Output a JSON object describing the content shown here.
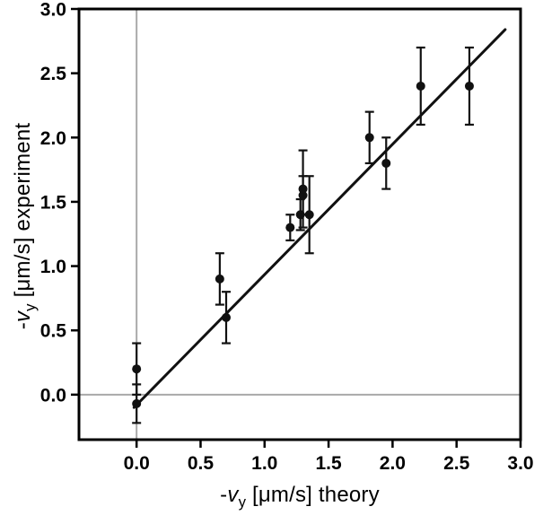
{
  "chart_data": {
    "type": "scatter",
    "title": "",
    "xlabel": "-vy [μm/s] theory",
    "ylabel": "-vy [μm/s] experiment",
    "xlabel_parts": {
      "prefix": "-",
      "var": "v",
      "sub": "y",
      "rest": " [μm/s] theory"
    },
    "ylabel_parts": {
      "prefix": "-",
      "var": "v",
      "sub": "y",
      "rest": " [μm/s] experiment"
    },
    "xlim": [
      -0.45,
      3.0
    ],
    "ylim": [
      -0.35,
      3.0
    ],
    "xticks": [
      0.0,
      0.5,
      1.0,
      1.5,
      2.0,
      2.5,
      3.0
    ],
    "xtick_labels": [
      "0.0",
      "0.5",
      "1.0",
      "1.5",
      "2.0",
      "2.5",
      "3.0"
    ],
    "yticks": [
      0.0,
      0.5,
      1.0,
      1.5,
      2.0,
      2.5,
      3.0
    ],
    "ytick_labels": [
      "0.0",
      "0.5",
      "1.0",
      "1.5",
      "2.0",
      "2.5",
      "3.0"
    ],
    "grid": false,
    "legend": null,
    "zero_lines": {
      "x": 0.0,
      "y": 0.0
    },
    "fit_line": {
      "x1": -0.02,
      "y1": -0.1,
      "x2": 2.88,
      "y2": 2.84
    },
    "points": [
      {
        "x": 0.0,
        "y": 0.2,
        "yerr": 0.2
      },
      {
        "x": 0.0,
        "y": -0.07,
        "yerr": 0.15
      },
      {
        "x": 0.65,
        "y": 0.9,
        "yerr": 0.2
      },
      {
        "x": 0.7,
        "y": 0.6,
        "yerr": 0.2
      },
      {
        "x": 1.2,
        "y": 1.3,
        "yerr": 0.1
      },
      {
        "x": 1.28,
        "y": 1.4,
        "yerr": 0.12
      },
      {
        "x": 1.3,
        "y": 1.55,
        "yerr": 0.15
      },
      {
        "x": 1.3,
        "y": 1.6,
        "yerr": 0.3
      },
      {
        "x": 1.35,
        "y": 1.4,
        "yerr": 0.3
      },
      {
        "x": 1.82,
        "y": 2.0,
        "yerr": 0.2
      },
      {
        "x": 1.95,
        "y": 1.8,
        "yerr": 0.2
      },
      {
        "x": 2.22,
        "y": 2.4,
        "yerr": 0.3
      },
      {
        "x": 2.6,
        "y": 2.4,
        "yerr": 0.3
      }
    ],
    "marker": {
      "shape": "circle",
      "radius_px": 5
    },
    "colors": {
      "marker": "#111111",
      "fit_line": "#111111",
      "zero_line": "#a9a9a9",
      "frame": "#000000",
      "text": "#000000"
    }
  }
}
